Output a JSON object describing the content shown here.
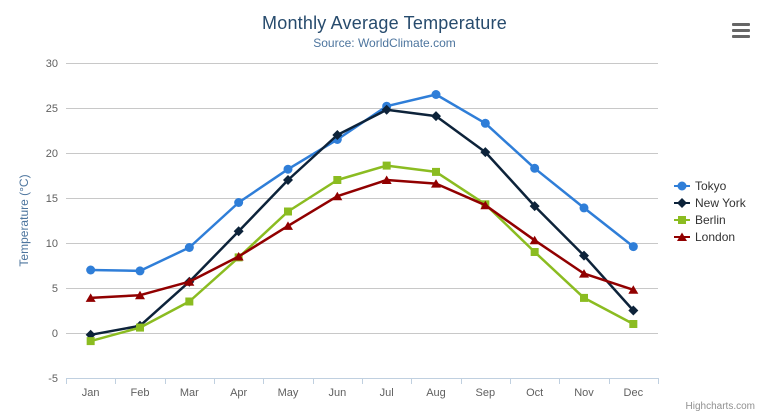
{
  "header": {
    "title": "Monthly Average Temperature",
    "subtitle": "Source: WorldClimate.com"
  },
  "credits": "Highcharts.com",
  "icons": {
    "menu": "hamburger-menu-icon"
  },
  "colors": {
    "title": "#274b6d",
    "subtitle": "#4d759e",
    "axis_label": "#606060",
    "axis_title": "#4d759e",
    "grid": "#c8c8c8",
    "axis_line": "#c0d0e0",
    "legend_text": "#333333",
    "credits_text": "#909090",
    "menu_icon": "#666666",
    "background": "#ffffff"
  },
  "chart_data": {
    "type": "line",
    "title": "Monthly Average Temperature",
    "subtitle": "Source: WorldClimate.com",
    "categories": [
      "Jan",
      "Feb",
      "Mar",
      "Apr",
      "May",
      "Jun",
      "Jul",
      "Aug",
      "Sep",
      "Oct",
      "Nov",
      "Dec"
    ],
    "xlabel": "",
    "ylabel": "Temperature (°C)",
    "ylim": [
      -5,
      30
    ],
    "y_ticks": [
      -5,
      0,
      5,
      10,
      15,
      20,
      25,
      30
    ],
    "grid": true,
    "legend_position": "right",
    "series": [
      {
        "name": "Tokyo",
        "color": "#2f7ed8",
        "marker": "circle",
        "values": [
          7.0,
          6.9,
          9.5,
          14.5,
          18.2,
          21.5,
          25.2,
          26.5,
          23.3,
          18.3,
          13.9,
          9.6
        ]
      },
      {
        "name": "New York",
        "color": "#0d233a",
        "marker": "diamond",
        "values": [
          -0.2,
          0.8,
          5.7,
          11.3,
          17.0,
          22.0,
          24.8,
          24.1,
          20.1,
          14.1,
          8.6,
          2.5
        ]
      },
      {
        "name": "Berlin",
        "color": "#8bbc21",
        "marker": "square",
        "values": [
          -0.9,
          0.6,
          3.5,
          8.4,
          13.5,
          17.0,
          18.6,
          17.9,
          14.3,
          9.0,
          3.9,
          1.0
        ]
      },
      {
        "name": "London",
        "color": "#910000",
        "marker": "triangle",
        "values": [
          3.9,
          4.2,
          5.7,
          8.5,
          11.9,
          15.2,
          17.0,
          16.6,
          14.2,
          10.3,
          6.6,
          4.8
        ]
      }
    ]
  }
}
